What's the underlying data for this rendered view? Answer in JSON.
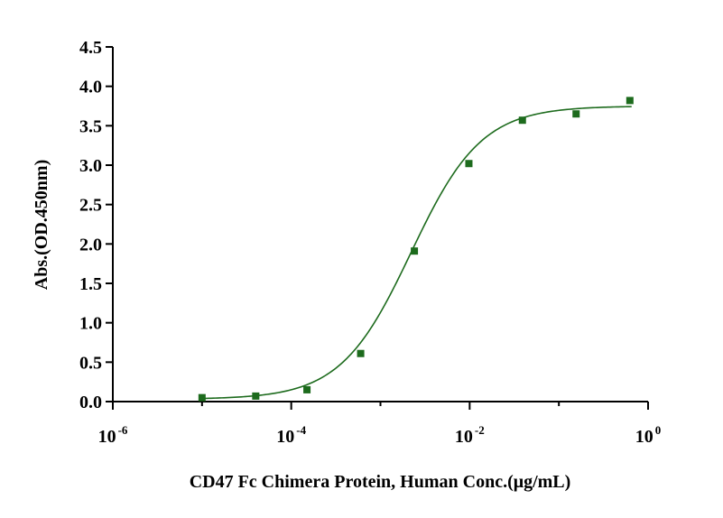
{
  "chart_data": {
    "type": "scatter",
    "xlabel": "CD47 Fc Chimera Protein, Human Conc.(μg/mL)",
    "ylabel": "Abs.(OD.450nm)",
    "xscale": "log",
    "xlim": [
      1e-06,
      1
    ],
    "ylim": [
      0,
      4.5
    ],
    "x_ticks": [
      {
        "base": "10",
        "exp": "-6"
      },
      {
        "base": "10",
        "exp": "-4"
      },
      {
        "base": "10",
        "exp": "-2"
      },
      {
        "base": "10",
        "exp": "0"
      }
    ],
    "y_ticks": [
      "0.0",
      "0.5",
      "1.0",
      "1.5",
      "2.0",
      "2.5",
      "3.0",
      "3.5",
      "4.0",
      "4.5"
    ],
    "color": "#1d6b1d",
    "series": [
      {
        "x": [
          1e-05,
          4e-05,
          0.00015,
          0.0006,
          0.0024,
          0.0098,
          0.039,
          0.156,
          0.625
        ],
        "y": [
          0.05,
          0.07,
          0.15,
          0.61,
          1.91,
          3.02,
          3.57,
          3.65,
          3.82
        ],
        "fit": "4PL sigmoid"
      }
    ]
  }
}
